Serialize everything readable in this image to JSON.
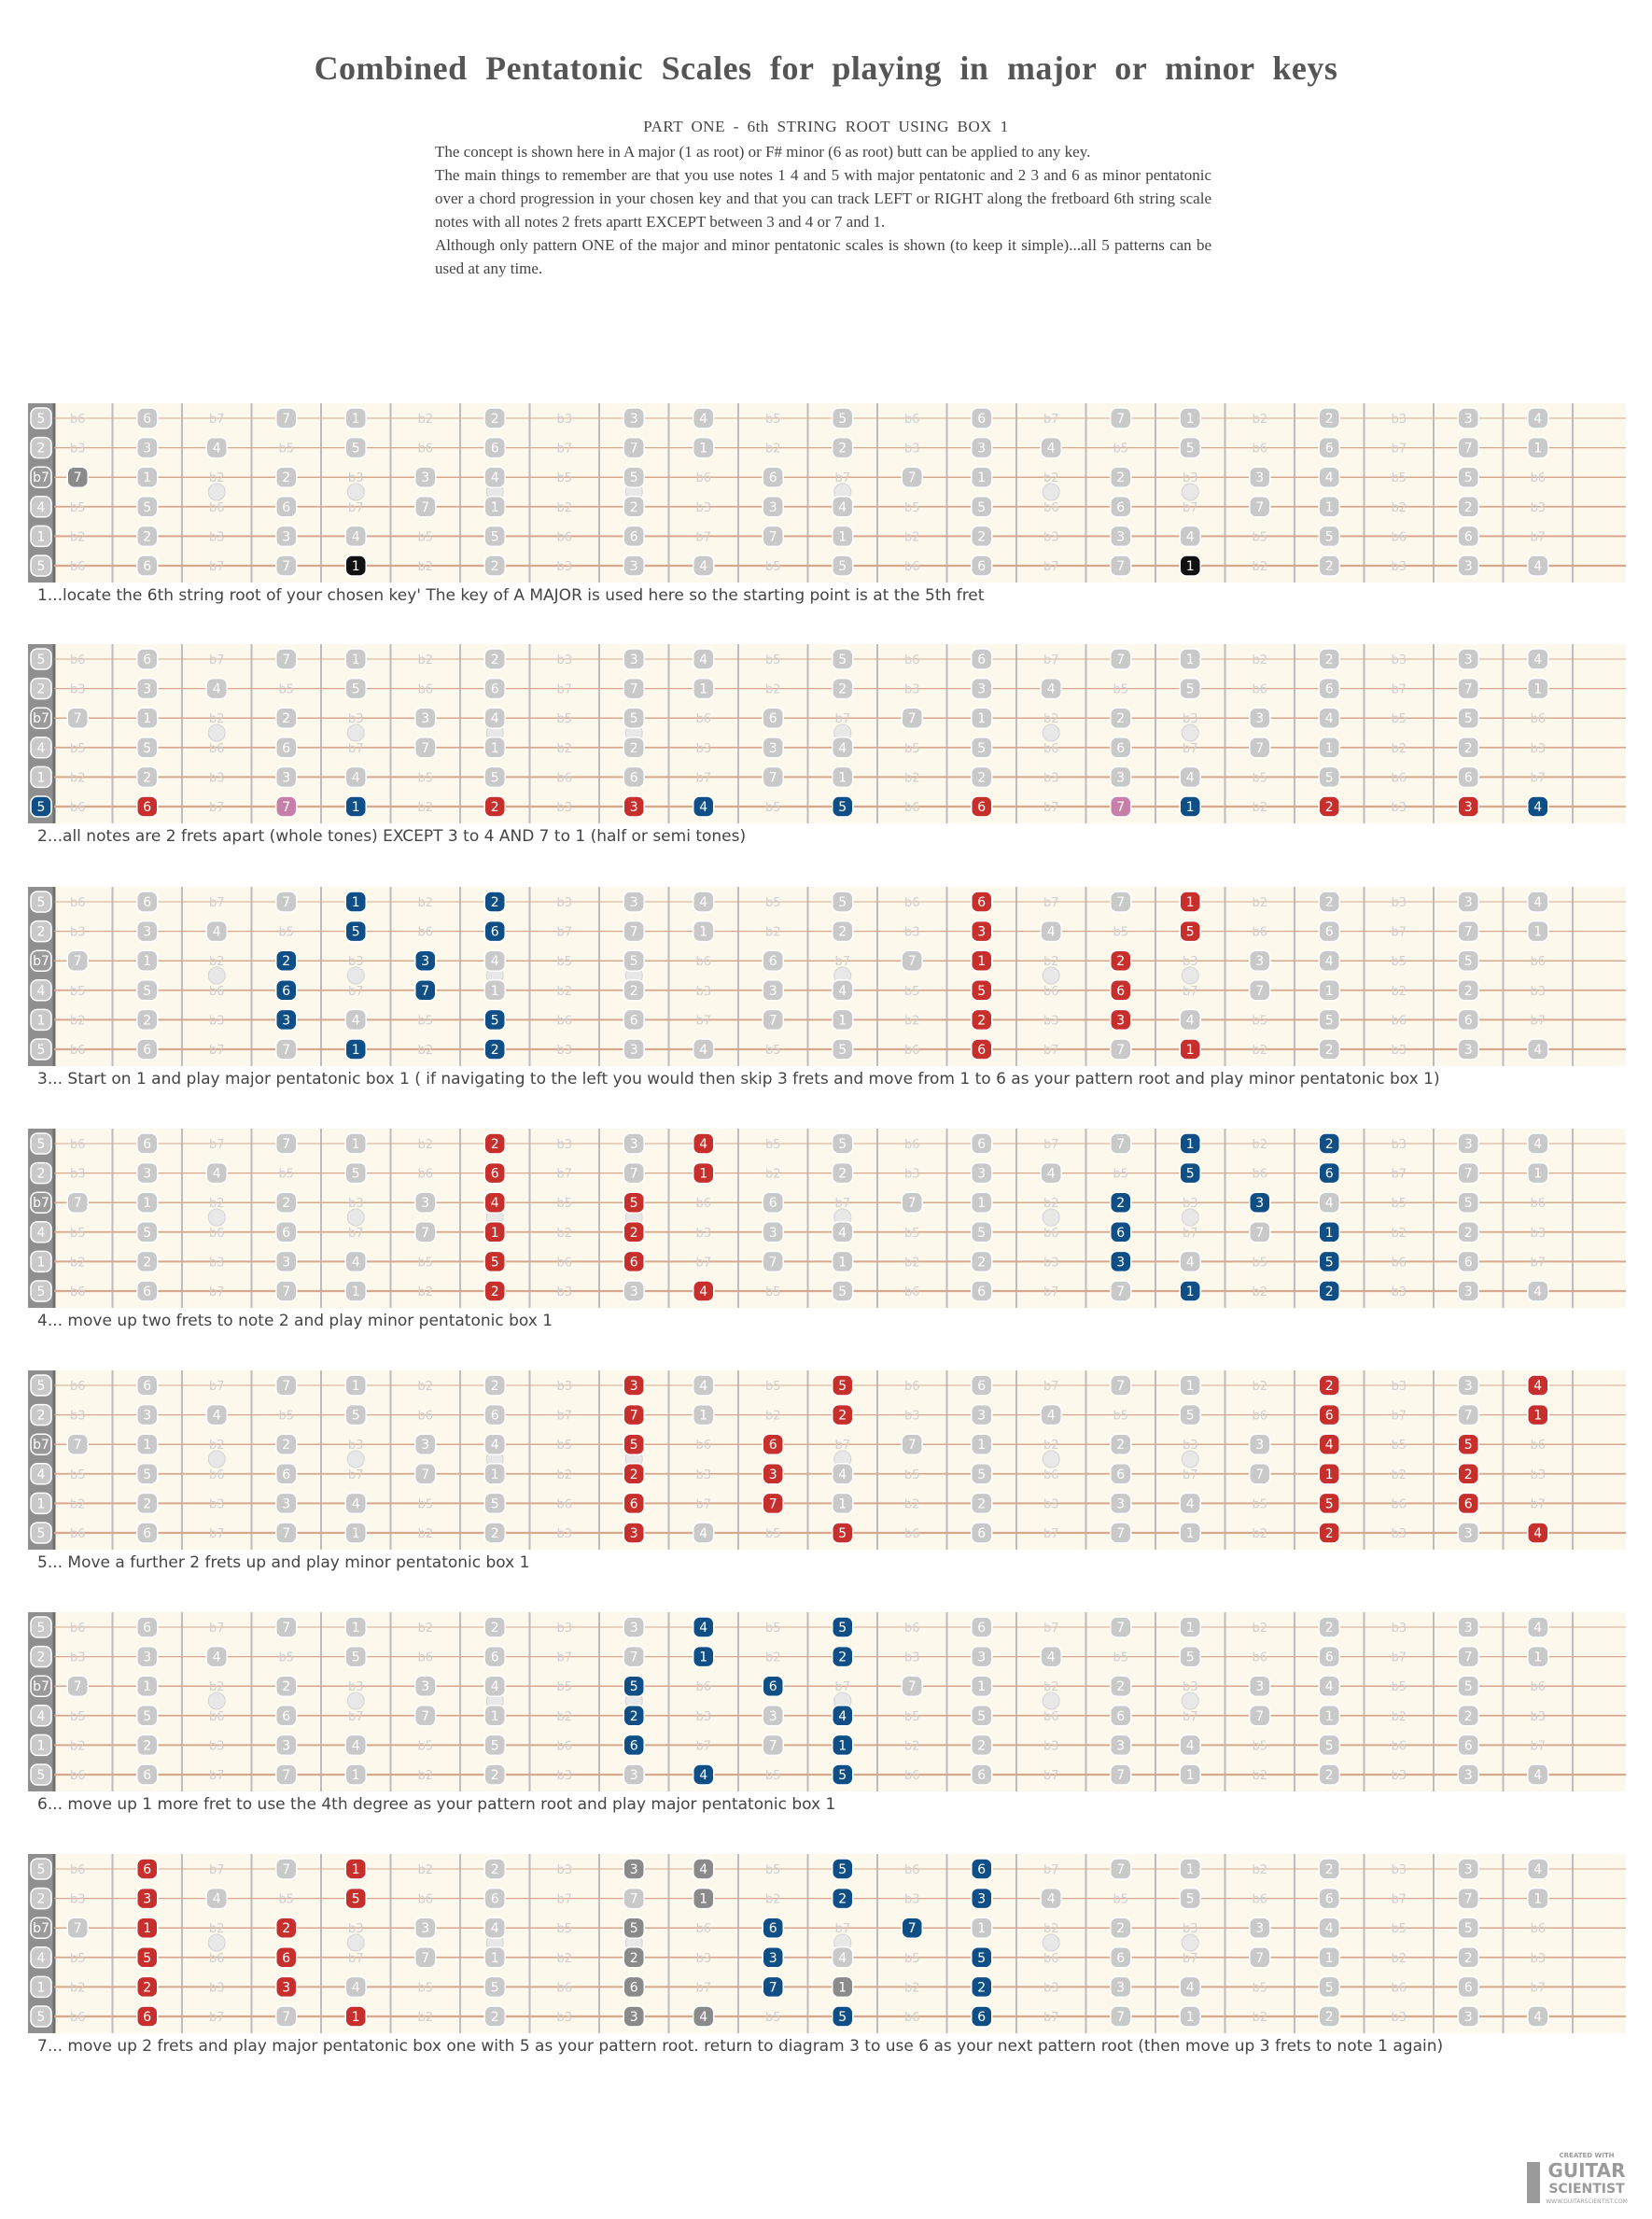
{
  "title": "Combined   Pentatonic   Scales   for playing   in major  or minor  keys",
  "subtitle": "PART ONE  - 6th  STRING  ROOT  USING  BOX 1",
  "intro": [
    "The concept   is shown  here  in A major   (1 as  root)   or F# minor  (6  as  root)  butt  can  be  applied  to any  key.",
    "   The main  things  to remember   are that  you  use  notes  1  4 and  5  with major  pentatonic   and 2 3 and 6 as  minor pentatonic   over  a  chord progression   in your  chosen   key  and that you  can track LEFT or RIGHT along  the  fretboard  6th string  scale  notes  with all notes  2 frets  apartt  EXCEPT between  3  and 4   or  7  and 1.",
    " Although  only pattern  ONE of  the  major  and  minor  pentatonic   scales   is shown  (to keep  it simple)...all   5 patterns   can  be  used  at  any  time."
  ],
  "colors": {
    "background": "#fdf8ec",
    "fret": "#bdbdbd",
    "string": "#d6a890",
    "gray_marker": "#c9c9c9",
    "dark_gray_marker": "#8a8a8a",
    "red": "#c62f2b",
    "blue": "#0f4f86",
    "black": "#111111",
    "pink": "#c77fa8"
  },
  "fretboard": {
    "string_labels": [
      "5",
      "2",
      "b7",
      "4",
      "1",
      "5"
    ],
    "num_frets": 22,
    "rows": [
      [
        "5",
        "b6",
        "6",
        "b7",
        "7",
        "1",
        "b2",
        "2",
        "b3",
        "3",
        "4",
        "b5",
        "5",
        "b6",
        "6",
        "b7",
        "7",
        "1",
        "b2",
        "2",
        "b3",
        "3",
        "4"
      ],
      [
        "2",
        "b3",
        "3",
        "4",
        "b5",
        "5",
        "b6",
        "6",
        "b7",
        "7",
        "1",
        "b2",
        "2",
        "b3",
        "3",
        "4",
        "b5",
        "5",
        "b6",
        "6",
        "b7",
        "7",
        "1"
      ],
      [
        "b7",
        "7",
        "1",
        "b2",
        "2",
        "b3",
        "3",
        "4",
        "b5",
        "5",
        "b6",
        "6",
        "b7",
        "7",
        "1",
        "b2",
        "2",
        "b3",
        "3",
        "4",
        "b5",
        "5",
        "b6"
      ],
      [
        "4",
        "b5",
        "5",
        "b6",
        "6",
        "b7",
        "7",
        "1",
        "b2",
        "2",
        "b3",
        "3",
        "4",
        "b5",
        "5",
        "b6",
        "6",
        "b7",
        "7",
        "1",
        "b2",
        "2",
        "b3"
      ],
      [
        "1",
        "b2",
        "2",
        "b3",
        "3",
        "4",
        "b5",
        "5",
        "b6",
        "6",
        "b7",
        "7",
        "1",
        "b2",
        "2",
        "b3",
        "3",
        "4",
        "b5",
        "5",
        "b6",
        "6",
        "b7"
      ],
      [
        "5",
        "b6",
        "6",
        "b7",
        "7",
        "1",
        "b2",
        "2",
        "b3",
        "3",
        "4",
        "b5",
        "5",
        "b6",
        "6",
        "b7",
        "7",
        "1",
        "b2",
        "2",
        "b3",
        "3",
        "4"
      ]
    ],
    "inlay_frets": [
      3,
      5,
      7,
      9,
      12,
      15,
      17
    ]
  },
  "diagrams": [
    {
      "caption": "1...locate the 6th string root of your chosen key' The key of A MAJOR is used here so the starting point is at the 5th fret",
      "highlights": [
        {
          "s": 5,
          "f": 5,
          "c": "black"
        },
        {
          "s": 5,
          "f": 17,
          "c": "black"
        },
        {
          "s": 2,
          "f": 1,
          "c": "dark"
        }
      ]
    },
    {
      "caption": "2...all notes are 2 frets apart (whole tones) EXCEPT 3 to 4 AND 7 to 1 (half or semi tones)",
      "highlights": [
        {
          "s": 5,
          "f": 0,
          "c": "blue"
        },
        {
          "s": 5,
          "f": 2,
          "c": "red"
        },
        {
          "s": 5,
          "f": 4,
          "c": "pink"
        },
        {
          "s": 5,
          "f": 5,
          "c": "blue"
        },
        {
          "s": 5,
          "f": 7,
          "c": "red"
        },
        {
          "s": 5,
          "f": 9,
          "c": "red"
        },
        {
          "s": 5,
          "f": 10,
          "c": "blue"
        },
        {
          "s": 5,
          "f": 12,
          "c": "blue"
        },
        {
          "s": 5,
          "f": 14,
          "c": "red"
        },
        {
          "s": 5,
          "f": 16,
          "c": "pink"
        },
        {
          "s": 5,
          "f": 17,
          "c": "blue"
        },
        {
          "s": 5,
          "f": 19,
          "c": "red"
        },
        {
          "s": 5,
          "f": 21,
          "c": "red"
        },
        {
          "s": 5,
          "f": 22,
          "c": "blue"
        }
      ]
    },
    {
      "caption": "3... Start on 1 and play major pentatonic box 1 ( if navigating to the left you would then skip 3 frets and move from 1 to 6 as your pattern root and play minor pentatonic box 1)",
      "highlights": [
        {
          "s": 0,
          "f": 5,
          "c": "blue"
        },
        {
          "s": 0,
          "f": 7,
          "c": "blue"
        },
        {
          "s": 1,
          "f": 5,
          "c": "blue"
        },
        {
          "s": 1,
          "f": 7,
          "c": "blue"
        },
        {
          "s": 2,
          "f": 4,
          "c": "blue"
        },
        {
          "s": 2,
          "f": 6,
          "c": "blue"
        },
        {
          "s": 3,
          "f": 4,
          "c": "blue"
        },
        {
          "s": 3,
          "f": 6,
          "c": "blue"
        },
        {
          "s": 4,
          "f": 4,
          "c": "blue"
        },
        {
          "s": 4,
          "f": 7,
          "c": "blue"
        },
        {
          "s": 5,
          "f": 5,
          "c": "blue"
        },
        {
          "s": 5,
          "f": 7,
          "c": "blue"
        },
        {
          "s": 0,
          "f": 14,
          "c": "red"
        },
        {
          "s": 0,
          "f": 17,
          "c": "red"
        },
        {
          "s": 1,
          "f": 14,
          "c": "red"
        },
        {
          "s": 1,
          "f": 17,
          "c": "red"
        },
        {
          "s": 2,
          "f": 14,
          "c": "red"
        },
        {
          "s": 2,
          "f": 16,
          "c": "red"
        },
        {
          "s": 3,
          "f": 14,
          "c": "red"
        },
        {
          "s": 3,
          "f": 16,
          "c": "red"
        },
        {
          "s": 4,
          "f": 14,
          "c": "red"
        },
        {
          "s": 4,
          "f": 16,
          "c": "red"
        },
        {
          "s": 5,
          "f": 14,
          "c": "red"
        },
        {
          "s": 5,
          "f": 17,
          "c": "red"
        }
      ]
    },
    {
      "caption": "4... move up two frets to note 2 and play minor pentatonic box 1",
      "highlights": [
        {
          "s": 0,
          "f": 7,
          "c": "red"
        },
        {
          "s": 0,
          "f": 10,
          "c": "red"
        },
        {
          "s": 1,
          "f": 7,
          "c": "red"
        },
        {
          "s": 1,
          "f": 10,
          "c": "red"
        },
        {
          "s": 2,
          "f": 7,
          "c": "red"
        },
        {
          "s": 2,
          "f": 9,
          "c": "red"
        },
        {
          "s": 3,
          "f": 7,
          "c": "red"
        },
        {
          "s": 3,
          "f": 9,
          "c": "red"
        },
        {
          "s": 4,
          "f": 7,
          "c": "red"
        },
        {
          "s": 4,
          "f": 9,
          "c": "red"
        },
        {
          "s": 5,
          "f": 7,
          "c": "red"
        },
        {
          "s": 5,
          "f": 10,
          "c": "red"
        },
        {
          "s": 0,
          "f": 17,
          "c": "blue"
        },
        {
          "s": 0,
          "f": 19,
          "c": "blue"
        },
        {
          "s": 1,
          "f": 17,
          "c": "blue"
        },
        {
          "s": 1,
          "f": 19,
          "c": "blue"
        },
        {
          "s": 2,
          "f": 16,
          "c": "blue"
        },
        {
          "s": 2,
          "f": 18,
          "c": "blue"
        },
        {
          "s": 3,
          "f": 16,
          "c": "blue"
        },
        {
          "s": 3,
          "f": 19,
          "c": "blue"
        },
        {
          "s": 4,
          "f": 16,
          "c": "blue"
        },
        {
          "s": 4,
          "f": 19,
          "c": "blue"
        },
        {
          "s": 5,
          "f": 17,
          "c": "blue"
        },
        {
          "s": 5,
          "f": 19,
          "c": "blue"
        }
      ]
    },
    {
      "caption": "5... Move  a  further 2 frets up and play minor pentatonic box 1",
      "highlights": [
        {
          "s": 0,
          "f": 9,
          "c": "red"
        },
        {
          "s": 0,
          "f": 12,
          "c": "red"
        },
        {
          "s": 1,
          "f": 9,
          "c": "red"
        },
        {
          "s": 1,
          "f": 12,
          "c": "red"
        },
        {
          "s": 2,
          "f": 9,
          "c": "red"
        },
        {
          "s": 2,
          "f": 11,
          "c": "red"
        },
        {
          "s": 3,
          "f": 9,
          "c": "red"
        },
        {
          "s": 3,
          "f": 11,
          "c": "red"
        },
        {
          "s": 4,
          "f": 9,
          "c": "red"
        },
        {
          "s": 4,
          "f": 11,
          "c": "red"
        },
        {
          "s": 5,
          "f": 9,
          "c": "red"
        },
        {
          "s": 5,
          "f": 12,
          "c": "red"
        },
        {
          "s": 0,
          "f": 19,
          "c": "red"
        },
        {
          "s": 0,
          "f": 22,
          "c": "red"
        },
        {
          "s": 1,
          "f": 19,
          "c": "red"
        },
        {
          "s": 1,
          "f": 22,
          "c": "red"
        },
        {
          "s": 2,
          "f": 19,
          "c": "red"
        },
        {
          "s": 2,
          "f": 21,
          "c": "red"
        },
        {
          "s": 3,
          "f": 19,
          "c": "red"
        },
        {
          "s": 3,
          "f": 21,
          "c": "red"
        },
        {
          "s": 4,
          "f": 19,
          "c": "red"
        },
        {
          "s": 4,
          "f": 21,
          "c": "red"
        },
        {
          "s": 5,
          "f": 19,
          "c": "red"
        },
        {
          "s": 5,
          "f": 22,
          "c": "red"
        }
      ]
    },
    {
      "caption": "6... move  up 1 more fret to use the 4th degree as your pattern root and play major pentatonic box 1",
      "highlights": [
        {
          "s": 0,
          "f": 10,
          "c": "blue"
        },
        {
          "s": 0,
          "f": 12,
          "c": "blue"
        },
        {
          "s": 1,
          "f": 10,
          "c": "blue"
        },
        {
          "s": 1,
          "f": 12,
          "c": "blue"
        },
        {
          "s": 2,
          "f": 9,
          "c": "blue"
        },
        {
          "s": 2,
          "f": 11,
          "c": "blue"
        },
        {
          "s": 3,
          "f": 9,
          "c": "blue"
        },
        {
          "s": 3,
          "f": 12,
          "c": "blue"
        },
        {
          "s": 4,
          "f": 9,
          "c": "blue"
        },
        {
          "s": 4,
          "f": 12,
          "c": "blue"
        },
        {
          "s": 5,
          "f": 10,
          "c": "blue"
        },
        {
          "s": 5,
          "f": 12,
          "c": "blue"
        }
      ]
    },
    {
      "caption": "7... move  up 2 frets and play major pentatonic box one with 5 as your pattern root. return to diagram 3 to use 6 as your next pattern root (then move  up 3 frets to note 1 again)",
      "highlights": [
        {
          "s": 0,
          "f": 2,
          "c": "red"
        },
        {
          "s": 0,
          "f": 5,
          "c": "red"
        },
        {
          "s": 1,
          "f": 2,
          "c": "red"
        },
        {
          "s": 1,
          "f": 5,
          "c": "red"
        },
        {
          "s": 2,
          "f": 2,
          "c": "red"
        },
        {
          "s": 2,
          "f": 4,
          "c": "red"
        },
        {
          "s": 3,
          "f": 2,
          "c": "red"
        },
        {
          "s": 3,
          "f": 4,
          "c": "red"
        },
        {
          "s": 4,
          "f": 2,
          "c": "red"
        },
        {
          "s": 4,
          "f": 4,
          "c": "red"
        },
        {
          "s": 5,
          "f": 2,
          "c": "red"
        },
        {
          "s": 5,
          "f": 5,
          "c": "red"
        },
        {
          "s": 0,
          "f": 9,
          "c": "dark"
        },
        {
          "s": 0,
          "f": 10,
          "c": "dark"
        },
        {
          "s": 1,
          "f": 10,
          "c": "dark"
        },
        {
          "s": 2,
          "f": 9,
          "c": "dark"
        },
        {
          "s": 3,
          "f": 9,
          "c": "dark"
        },
        {
          "s": 3,
          "f": 11,
          "c": "dark"
        },
        {
          "s": 4,
          "f": 9,
          "c": "dark"
        },
        {
          "s": 4,
          "f": 12,
          "c": "dark"
        },
        {
          "s": 5,
          "f": 9,
          "c": "dark"
        },
        {
          "s": 5,
          "f": 10,
          "c": "dark"
        },
        {
          "s": 0,
          "f": 12,
          "c": "blue"
        },
        {
          "s": 0,
          "f": 14,
          "c": "blue"
        },
        {
          "s": 1,
          "f": 12,
          "c": "blue"
        },
        {
          "s": 1,
          "f": 14,
          "c": "blue"
        },
        {
          "s": 2,
          "f": 11,
          "c": "blue"
        },
        {
          "s": 2,
          "f": 13,
          "c": "blue"
        },
        {
          "s": 3,
          "f": 11,
          "c": "blue"
        },
        {
          "s": 3,
          "f": 14,
          "c": "blue"
        },
        {
          "s": 4,
          "f": 11,
          "c": "blue"
        },
        {
          "s": 4,
          "f": 14,
          "c": "blue"
        },
        {
          "s": 5,
          "f": 12,
          "c": "blue"
        },
        {
          "s": 5,
          "f": 14,
          "c": "blue"
        }
      ]
    }
  ],
  "logo": {
    "line1": "CREATED WITH",
    "line2": "GUITAR",
    "line3": "SCIENTIST",
    "line4": "WWW.GUITARSCIENTIST.COM"
  }
}
